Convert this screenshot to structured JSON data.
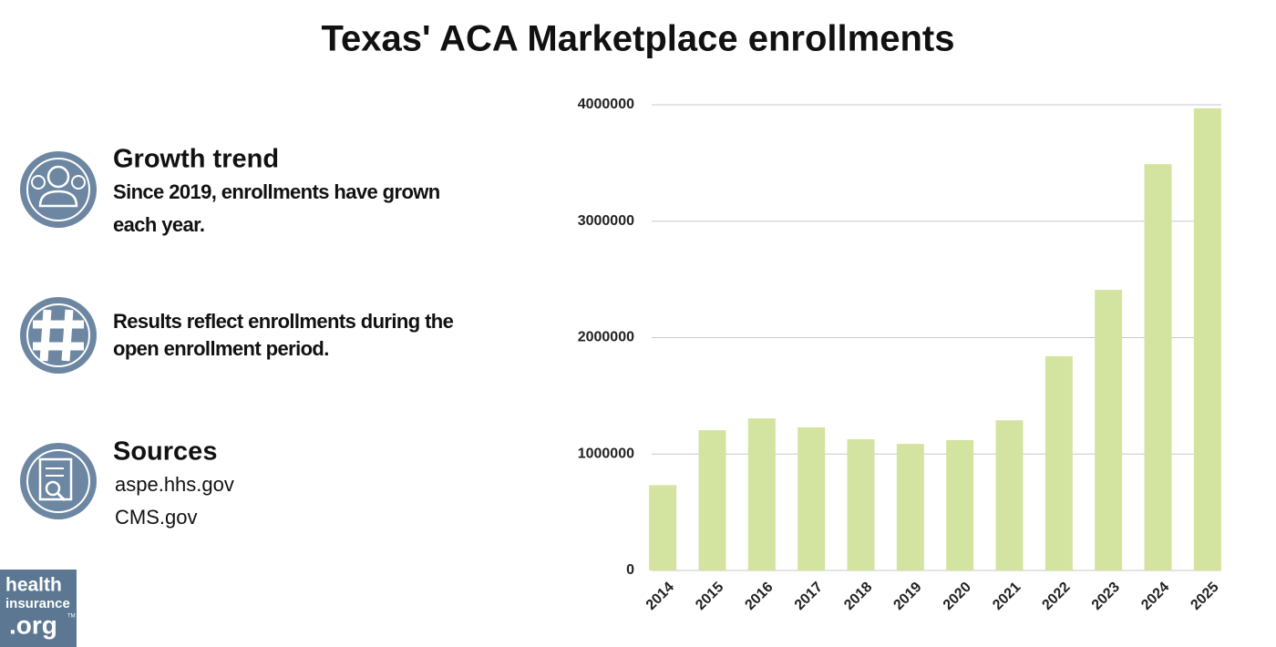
{
  "chart_data": {
    "type": "bar",
    "title": "Texas' ACA Marketplace enrollments",
    "categories": [
      "2014",
      "2015",
      "2016",
      "2017",
      "2018",
      "2019",
      "2020",
      "2021",
      "2022",
      "2023",
      "2024",
      "2025"
    ],
    "values": [
      733000,
      1205000,
      1306000,
      1229000,
      1127000,
      1087000,
      1120000,
      1290000,
      1840000,
      2410000,
      3490000,
      3970000
    ],
    "color": "#d3e4a0",
    "ylim": [
      0,
      4000000
    ],
    "yticks": [
      0,
      1000000,
      2000000,
      3000000,
      4000000
    ],
    "grid": true
  },
  "panel": {
    "growth": {
      "heading": "Growth trend",
      "lines": [
        "Since 2019, enrollments have grown",
        "each year."
      ]
    },
    "note": {
      "lines": [
        "Results reflect enrollments during the",
        "open enrollment period."
      ]
    },
    "sources": {
      "heading": "Sources",
      "lines": [
        "aspe.hhs.gov",
        "CMS.gov"
      ]
    }
  },
  "logo": {
    "lines": [
      "health",
      "insurance",
      ".org"
    ],
    "mark": "TM"
  }
}
